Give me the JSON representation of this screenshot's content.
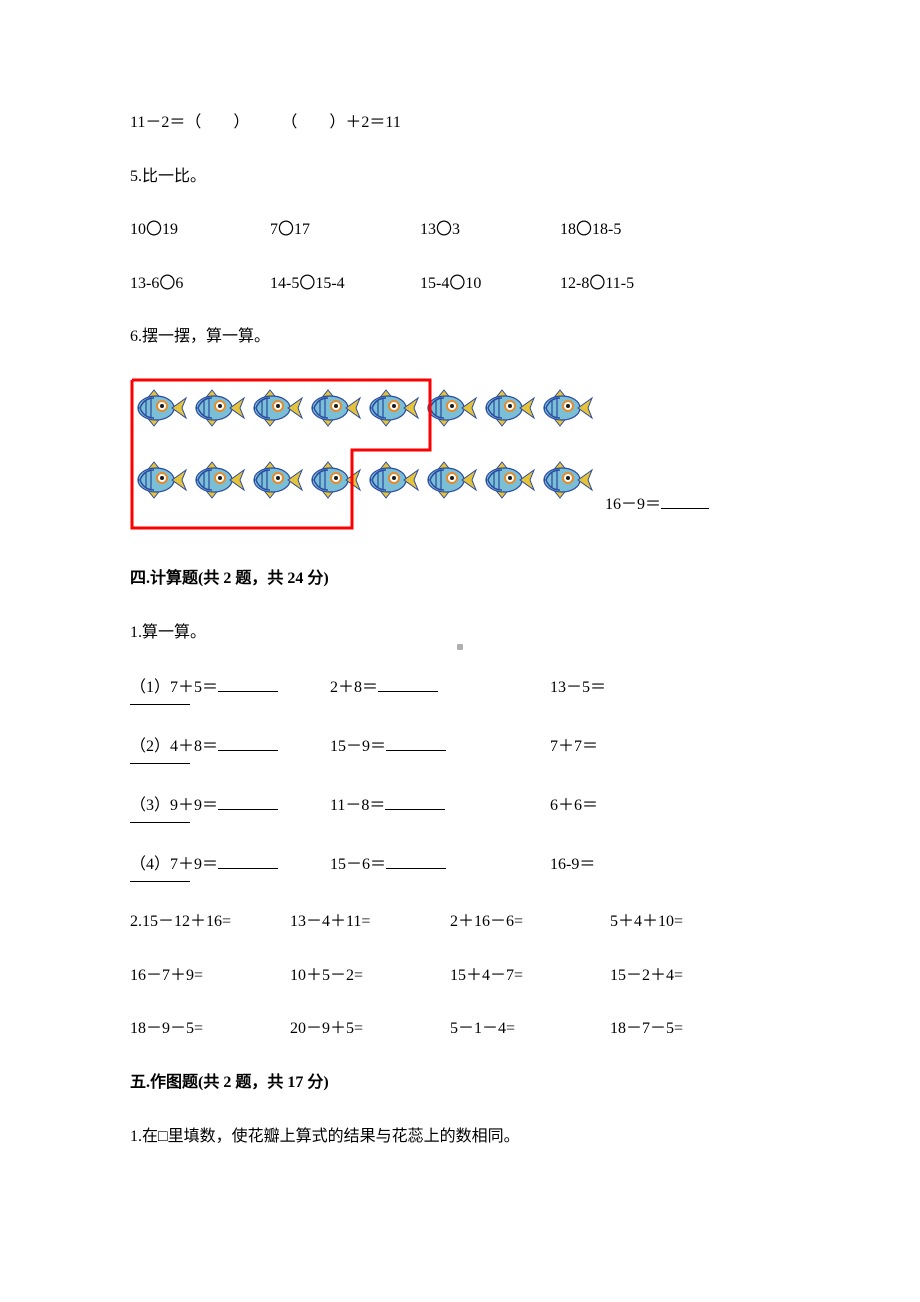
{
  "q4_line": "11－2＝（　　）　　　（　　）＋2＝11",
  "q5_title": "5.比一比。",
  "q5_row1": {
    "a": "10〇19",
    "b": "7〇17",
    "c": "13〇3",
    "d": "18〇18-5"
  },
  "q5_row2": {
    "a": "13-6〇6",
    "b": "14-5〇15-4",
    "c": "15-4〇10",
    "d": "12-8〇11-5"
  },
  "q6_title": "6.摆一摆，算一算。",
  "q6_eq": "16－9＝",
  "sec4_heading": "四.计算题(共 2 题，共 24 分)",
  "q4_1_title": "1.算一算。",
  "q4_1_rows": [
    {
      "a": "（1）7＋5＝",
      "b": "2＋8＝",
      "c": "13－5＝"
    },
    {
      "a": "（2）4＋8＝",
      "b": "15－9＝",
      "c": "7＋7＝"
    },
    {
      "a": "（3）9＋9＝",
      "b": "11－8＝",
      "c": "6＋6＝"
    },
    {
      "a": "（4）7＋9＝",
      "b": "15－6＝",
      "c": "16-9＝"
    }
  ],
  "q4_2_rows": [
    {
      "a": "2.15－12＋16=",
      "b": "13－4＋11=",
      "c": "2＋16－6=",
      "d": "5＋4＋10="
    },
    {
      "a": "16－7＋9=",
      "b": "10＋5－2=",
      "c": "15＋4－7=",
      "d": "15－2＋4="
    },
    {
      "a": "18－9－5=",
      "b": "20－9＋5=",
      "c": "5－1－4=",
      "d": "18－7－5="
    }
  ],
  "sec5_heading": "五.作图题(共 2 题，共 17 分)",
  "q5_1_text": "1.在□里填数，使花瓣上算式的结果与花蕊上的数相同。",
  "fish_colors": {
    "body": "#7abfd6",
    "stripe": "#2a4aa0",
    "fin_yellow": "#e6c43a",
    "fin_dark": "#2a4aa0",
    "eye_ring": "#e88a2a",
    "eye": "#1a1a1a"
  },
  "red_outline": "#ff0000",
  "red_stroke_width": 3,
  "fish_row1_count": 8,
  "fish_row2_count": 8
}
